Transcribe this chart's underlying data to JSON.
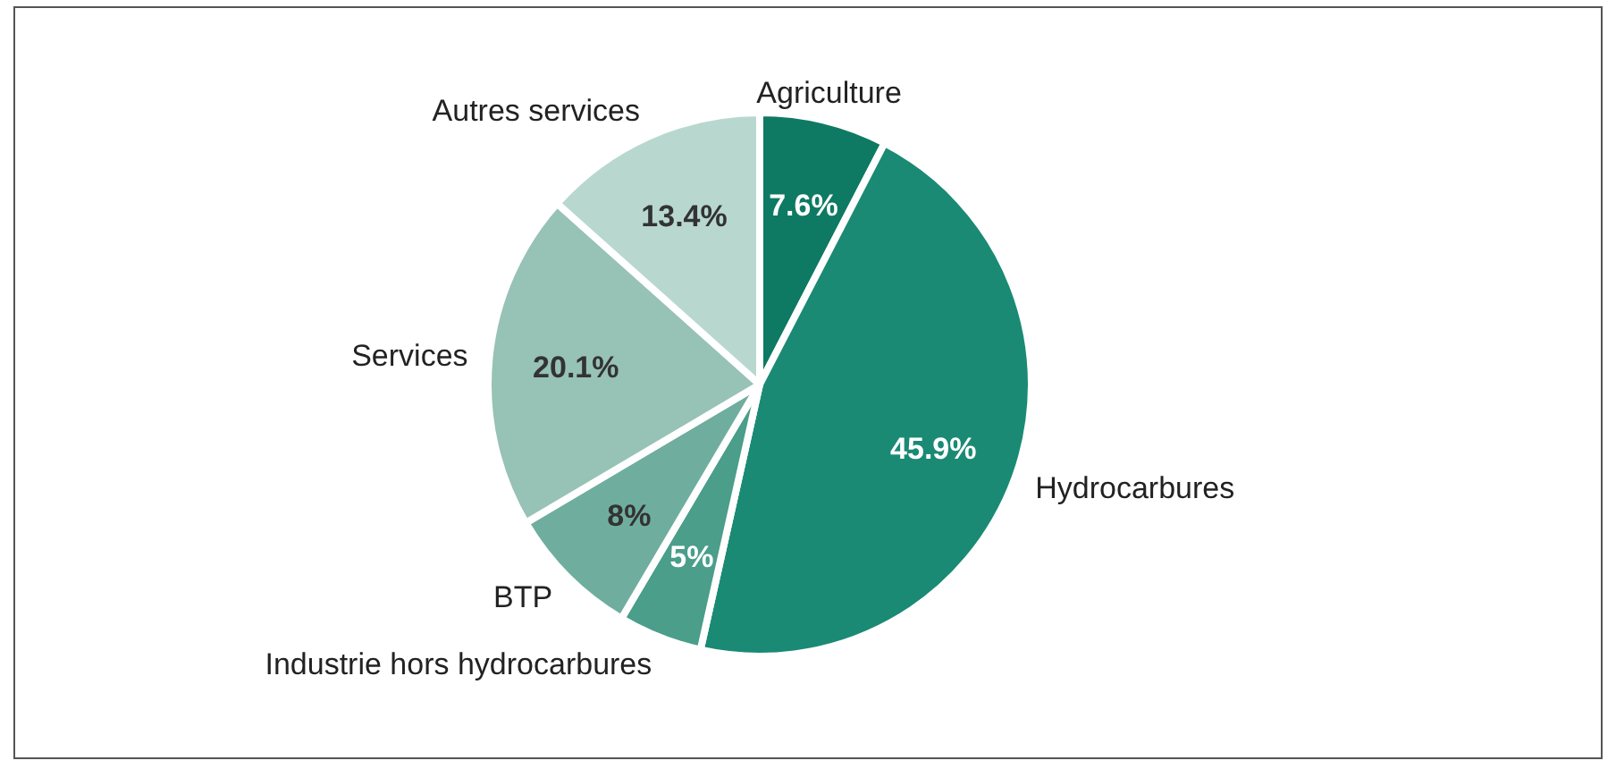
{
  "chart_data": {
    "type": "pie",
    "categories": [
      "Agriculture",
      "Hydrocarbures",
      "Industrie hors hydrocarbures",
      "BTP",
      "Services",
      "Autres services"
    ],
    "values": [
      7.6,
      45.9,
      5,
      8,
      20.1,
      13.4
    ],
    "colors": [
      "#0e7a63",
      "#1a8a74",
      "#4a9e8a",
      "#6fae9e",
      "#97c2b6",
      "#b8d8cf"
    ],
    "value_labels": [
      "7.6%",
      "45.9%",
      "5%",
      "8%",
      "20.1%",
      "13.4%"
    ]
  }
}
